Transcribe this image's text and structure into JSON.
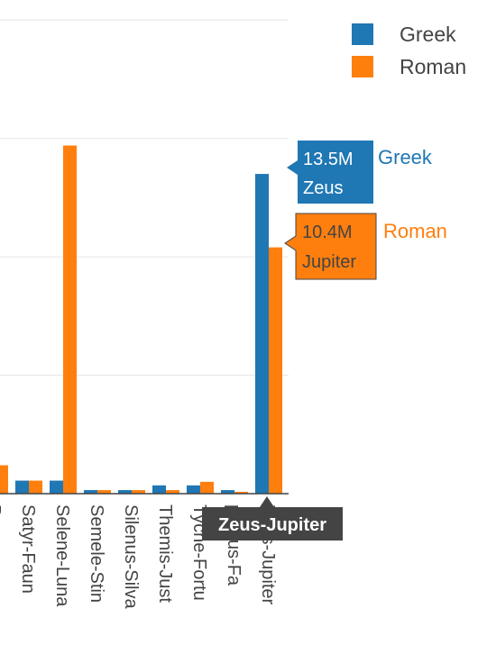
{
  "chart_data": {
    "type": "bar",
    "categories": [
      "Pr",
      "Satyr-Faun",
      "Selene-Luna",
      "Semele-Stin",
      "Silenus-Silva",
      "Themis-Just",
      "Tyche-Fortu",
      "phyrus-Fa",
      "Zeus-Jupiter"
    ],
    "series": [
      {
        "name": "Greek",
        "color": "#1f77b4",
        "values": [
          null,
          0.55,
          0.55,
          0.15,
          0.15,
          0.35,
          0.35,
          0.15,
          13.5
        ]
      },
      {
        "name": "Roman",
        "color": "#ff7f0e",
        "values": [
          1.2,
          0.55,
          14.7,
          0.15,
          0.15,
          0.15,
          0.5,
          0.08,
          10.4
        ]
      }
    ],
    "ylim": [
      0,
      17.5
    ],
    "gridlines": [
      5,
      10,
      15,
      20
    ],
    "grid": true,
    "legend_position": "top-right",
    "hover": {
      "category": "Zeus-Jupiter",
      "label": "Zeus-Jupiter",
      "items": [
        {
          "series": "Greek",
          "value_text": "13.5M",
          "name_text": "Zeus",
          "color": "#1f77b4"
        },
        {
          "series": "Roman",
          "value_text": "10.4M",
          "name_text": "Jupiter",
          "color": "#ff7f0e"
        }
      ]
    }
  }
}
